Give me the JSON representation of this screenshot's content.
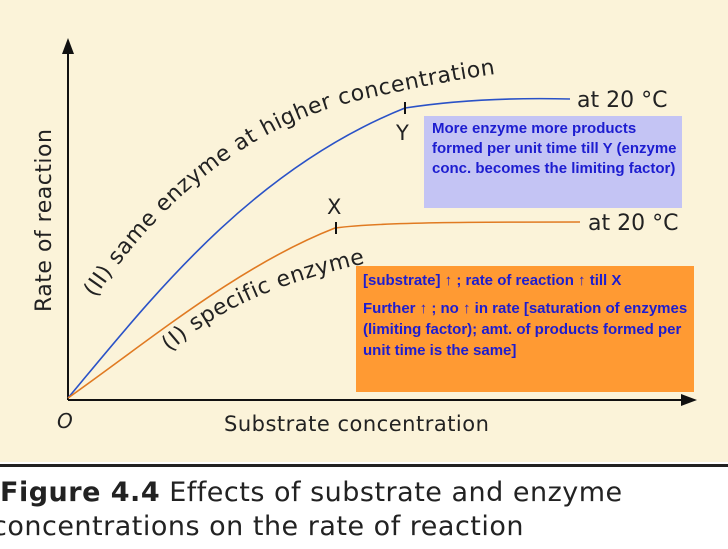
{
  "chart_data": {
    "type": "line",
    "xlabel": "Substrate concentration",
    "ylabel": "Rate of reaction",
    "origin_label": "O",
    "series": [
      {
        "name": "(II) same enzyme at higher concentration",
        "color": "#2a52c7",
        "end_label": "at 20 °C",
        "marker_label": "Y"
      },
      {
        "name": "(I) specific enzyme",
        "color": "#e07a22",
        "end_label": "at 20 °C",
        "marker_label": "X"
      }
    ]
  },
  "annotations": {
    "box_y": "More enzyme more products formed per unit time till Y (enzyme conc. becomes the limiting factor)",
    "box_x_line1": "[substrate] ↑ ; rate of reaction ↑ till X",
    "box_x_line2": "Further ↑ ; no ↑ in rate [saturation of enzymes (limiting factor); amt. of products formed per unit time is the same]"
  },
  "caption": {
    "label": "Figure 4.4",
    "text_line1": "Effects of substrate and enzyme",
    "text_line2": "concentrations on the rate of reaction"
  },
  "colors": {
    "plot_background": "#fbf3d9",
    "annotation_text": "#1d1dd0",
    "box_y_background": "#c4c4f4",
    "box_x_background": "#ff9a33"
  }
}
